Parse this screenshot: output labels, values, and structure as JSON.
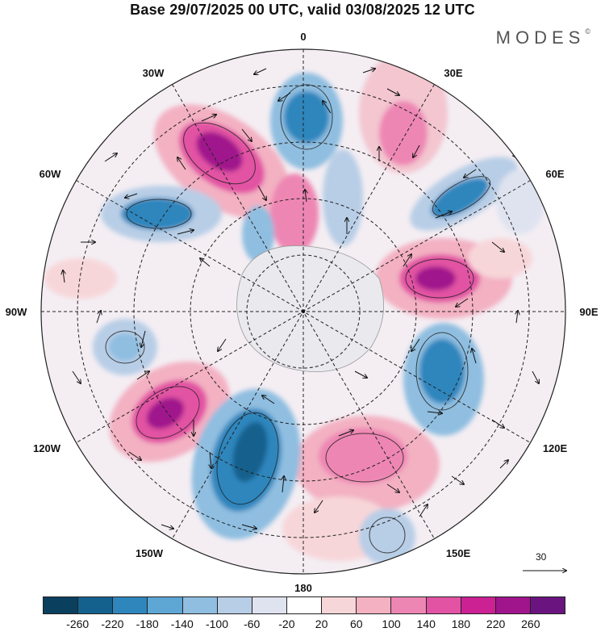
{
  "title": "Base 29/07/2025 00 UTC, valid 03/08/2025 12 UTC",
  "brand": "MODES",
  "brand_mark": "©",
  "longitude_labels": {
    "0": "0",
    "30e": "30E",
    "60e": "60E",
    "90e": "90E",
    "120e": "120E",
    "150e": "150E",
    "180": "180",
    "150w": "150W",
    "120w": "120W",
    "90w": "90W",
    "60w": "60W",
    "30w": "30W"
  },
  "wind_scale": {
    "label": "30"
  },
  "colorbar": {
    "colors": [
      "#0b3f5e",
      "#15618e",
      "#2f86bd",
      "#5ea6d4",
      "#8fbee0",
      "#b8cee6",
      "#dfe3f0",
      "#ffffff",
      "#f7d6d9",
      "#f3b1c2",
      "#ee86b3",
      "#e253a3",
      "#cb2192",
      "#a0148c",
      "#6a157f"
    ],
    "ticks": [
      "-260",
      "-220",
      "-180",
      "-140",
      "-100",
      "-60",
      "-20",
      "20",
      "60",
      "100",
      "140",
      "180",
      "220",
      "260"
    ]
  }
}
